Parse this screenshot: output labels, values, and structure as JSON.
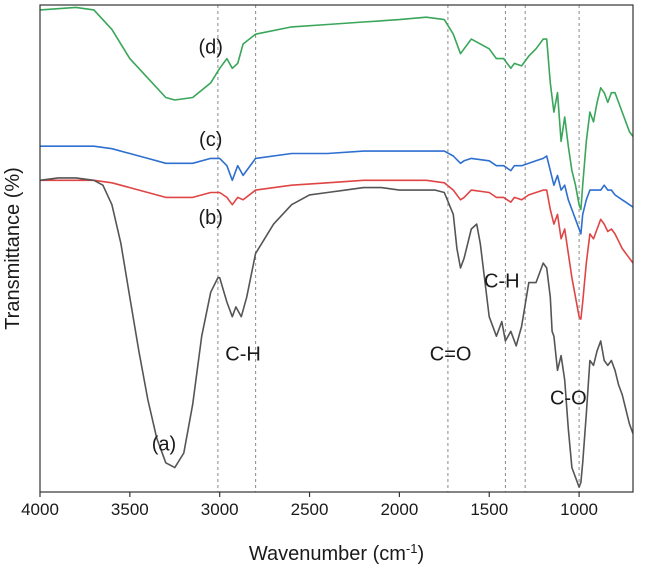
{
  "chart_data": {
    "type": "line",
    "title": "",
    "xlabel": "Wavenumber (cm",
    "xlabel_sup": "-1",
    "xlabel_end": ")",
    "ylabel": "Transmittance (%)",
    "xlim": [
      4000,
      700
    ],
    "x_reversed": true,
    "xticks": [
      4000,
      3500,
      3000,
      2500,
      2000,
      1500,
      1000
    ],
    "xtick_labels": [
      "4000",
      "3500",
      "3000",
      "2500",
      "2000",
      "1500",
      "1000"
    ],
    "y_ticks_shown": false,
    "ylim": [
      0,
      100
    ],
    "grid": false,
    "legend": "none",
    "reference_lines": [
      3010,
      2800,
      1730,
      1410,
      1300,
      1000
    ],
    "annotations": [
      {
        "text": "C-H",
        "x": 2870,
        "y": 27
      },
      {
        "text": "C=O",
        "x": 1715,
        "y": 27
      },
      {
        "text": "C-H",
        "x": 1430,
        "y": 42
      },
      {
        "text": "C-O",
        "x": 1060,
        "y": 18
      }
    ],
    "series": [
      {
        "name": "(d)",
        "color": "#3aa65a",
        "label_x": 3050,
        "label_y": 90,
        "x": [
          4000,
          3800,
          3700,
          3600,
          3500,
          3400,
          3300,
          3250,
          3150,
          3050,
          3000,
          2960,
          2930,
          2900,
          2870,
          2800,
          2600,
          2400,
          2200,
          2000,
          1850,
          1750,
          1700,
          1660,
          1640,
          1600,
          1500,
          1460,
          1420,
          1380,
          1360,
          1320,
          1280,
          1240,
          1200,
          1180,
          1160,
          1140,
          1120,
          1100,
          1080,
          1060,
          1040,
          1020,
          1000,
          990,
          980,
          960,
          940,
          920,
          900,
          880,
          860,
          840,
          820,
          800,
          780,
          760,
          740,
          720,
          700
        ],
        "y": [
          99,
          99.5,
          99,
          95,
          89,
          85,
          81,
          80.5,
          81,
          84,
          87,
          89,
          87,
          88,
          92,
          94,
          95.5,
          96,
          96.5,
          97,
          97.5,
          97,
          94,
          90,
          91,
          93,
          91,
          89,
          89,
          87,
          88,
          87.5,
          89.5,
          91,
          93,
          93,
          84,
          78,
          82,
          72,
          77,
          71,
          66,
          63,
          59,
          58,
          63,
          72,
          78,
          76,
          80,
          83,
          82,
          80,
          82,
          82,
          80,
          78,
          76,
          74,
          73
        ]
      },
      {
        "name": "(c)",
        "color": "#2e6fcf",
        "label_x": 3050,
        "label_y": 71,
        "x": [
          4000,
          3800,
          3700,
          3600,
          3500,
          3400,
          3300,
          3250,
          3150,
          3050,
          3000,
          2960,
          2930,
          2900,
          2870,
          2800,
          2600,
          2400,
          2200,
          2000,
          1850,
          1750,
          1700,
          1660,
          1640,
          1600,
          1500,
          1460,
          1420,
          1380,
          1360,
          1320,
          1280,
          1240,
          1200,
          1180,
          1160,
          1140,
          1120,
          1100,
          1080,
          1060,
          1040,
          1020,
          1000,
          990,
          980,
          960,
          940,
          920,
          900,
          880,
          860,
          840,
          820,
          800,
          780,
          760,
          740,
          720,
          700
        ],
        "y": [
          71,
          71,
          71,
          70.5,
          69.5,
          68.5,
          67.5,
          67.5,
          67.5,
          68.5,
          68.5,
          67,
          64,
          67,
          65,
          68.5,
          69.5,
          69.5,
          70,
          70,
          70,
          70,
          69,
          67.5,
          68,
          68.5,
          68,
          67,
          67,
          66,
          67,
          67,
          67.5,
          68,
          68.5,
          69,
          66,
          63,
          65,
          62,
          63,
          60,
          58,
          56,
          54,
          53,
          57,
          60,
          62,
          62,
          62,
          62,
          63,
          62,
          62,
          61,
          60.5,
          60,
          59.5,
          59,
          58.5
        ]
      },
      {
        "name": "(b)",
        "color": "#e04545",
        "label_x": 3050,
        "label_y": 55,
        "x": [
          4000,
          3800,
          3700,
          3600,
          3500,
          3400,
          3300,
          3250,
          3150,
          3050,
          3000,
          2960,
          2930,
          2900,
          2870,
          2800,
          2600,
          2400,
          2200,
          2000,
          1850,
          1750,
          1700,
          1660,
          1640,
          1600,
          1500,
          1460,
          1420,
          1380,
          1360,
          1320,
          1280,
          1240,
          1200,
          1180,
          1160,
          1140,
          1120,
          1100,
          1080,
          1060,
          1040,
          1020,
          1000,
          990,
          980,
          960,
          940,
          920,
          900,
          880,
          860,
          840,
          820,
          800,
          780,
          760,
          740,
          720,
          700
        ],
        "y": [
          64,
          64,
          64,
          63.5,
          62.5,
          61.5,
          60.5,
          60.5,
          60.5,
          61.5,
          61.5,
          60.5,
          59,
          60.5,
          60,
          62,
          63,
          63.5,
          64,
          64,
          64,
          63.5,
          62,
          60,
          60.5,
          62,
          61.5,
          60.5,
          60.5,
          59.5,
          60.5,
          60,
          61,
          61.5,
          62,
          62,
          58,
          55,
          57,
          52,
          54,
          49,
          44,
          40,
          36,
          35.5,
          39,
          47,
          53,
          52,
          54,
          56,
          55,
          53.5,
          54,
          53,
          51.5,
          50,
          49,
          48,
          47
        ]
      },
      {
        "name": "(a)",
        "color": "#555555",
        "label_x": 3310,
        "label_y": 8.5,
        "x": [
          4000,
          3900,
          3800,
          3700,
          3650,
          3600,
          3550,
          3500,
          3450,
          3400,
          3350,
          3300,
          3250,
          3200,
          3150,
          3100,
          3050,
          3010,
          3000,
          2960,
          2930,
          2910,
          2880,
          2850,
          2800,
          2700,
          2600,
          2500,
          2400,
          2300,
          2200,
          2100,
          2000,
          1900,
          1800,
          1750,
          1700,
          1680,
          1660,
          1640,
          1600,
          1570,
          1550,
          1500,
          1460,
          1430,
          1410,
          1380,
          1350,
          1320,
          1280,
          1240,
          1200,
          1180,
          1160,
          1150,
          1140,
          1120,
          1100,
          1080,
          1060,
          1040,
          1020,
          1000,
          990,
          980,
          960,
          940,
          920,
          900,
          880,
          860,
          840,
          820,
          800,
          780,
          760,
          740,
          720,
          700
        ],
        "y": [
          64,
          64.5,
          64.5,
          64,
          63,
          59,
          51,
          40,
          29,
          19,
          11,
          6,
          5,
          8,
          18,
          32,
          41,
          44,
          44,
          39,
          36,
          38,
          36,
          40,
          49,
          55,
          59,
          61,
          61.5,
          62,
          62.5,
          62.5,
          62,
          62,
          62,
          61.5,
          57,
          50,
          46,
          48,
          54,
          55,
          51,
          36,
          32,
          35,
          31,
          33,
          30,
          34,
          43,
          43,
          47,
          46,
          40,
          33,
          32,
          25,
          28,
          23,
          13,
          5,
          3,
          1,
          2,
          6,
          16,
          27,
          26,
          29,
          31,
          27,
          26,
          27,
          25,
          22,
          20,
          17,
          14,
          12
        ]
      }
    ]
  }
}
